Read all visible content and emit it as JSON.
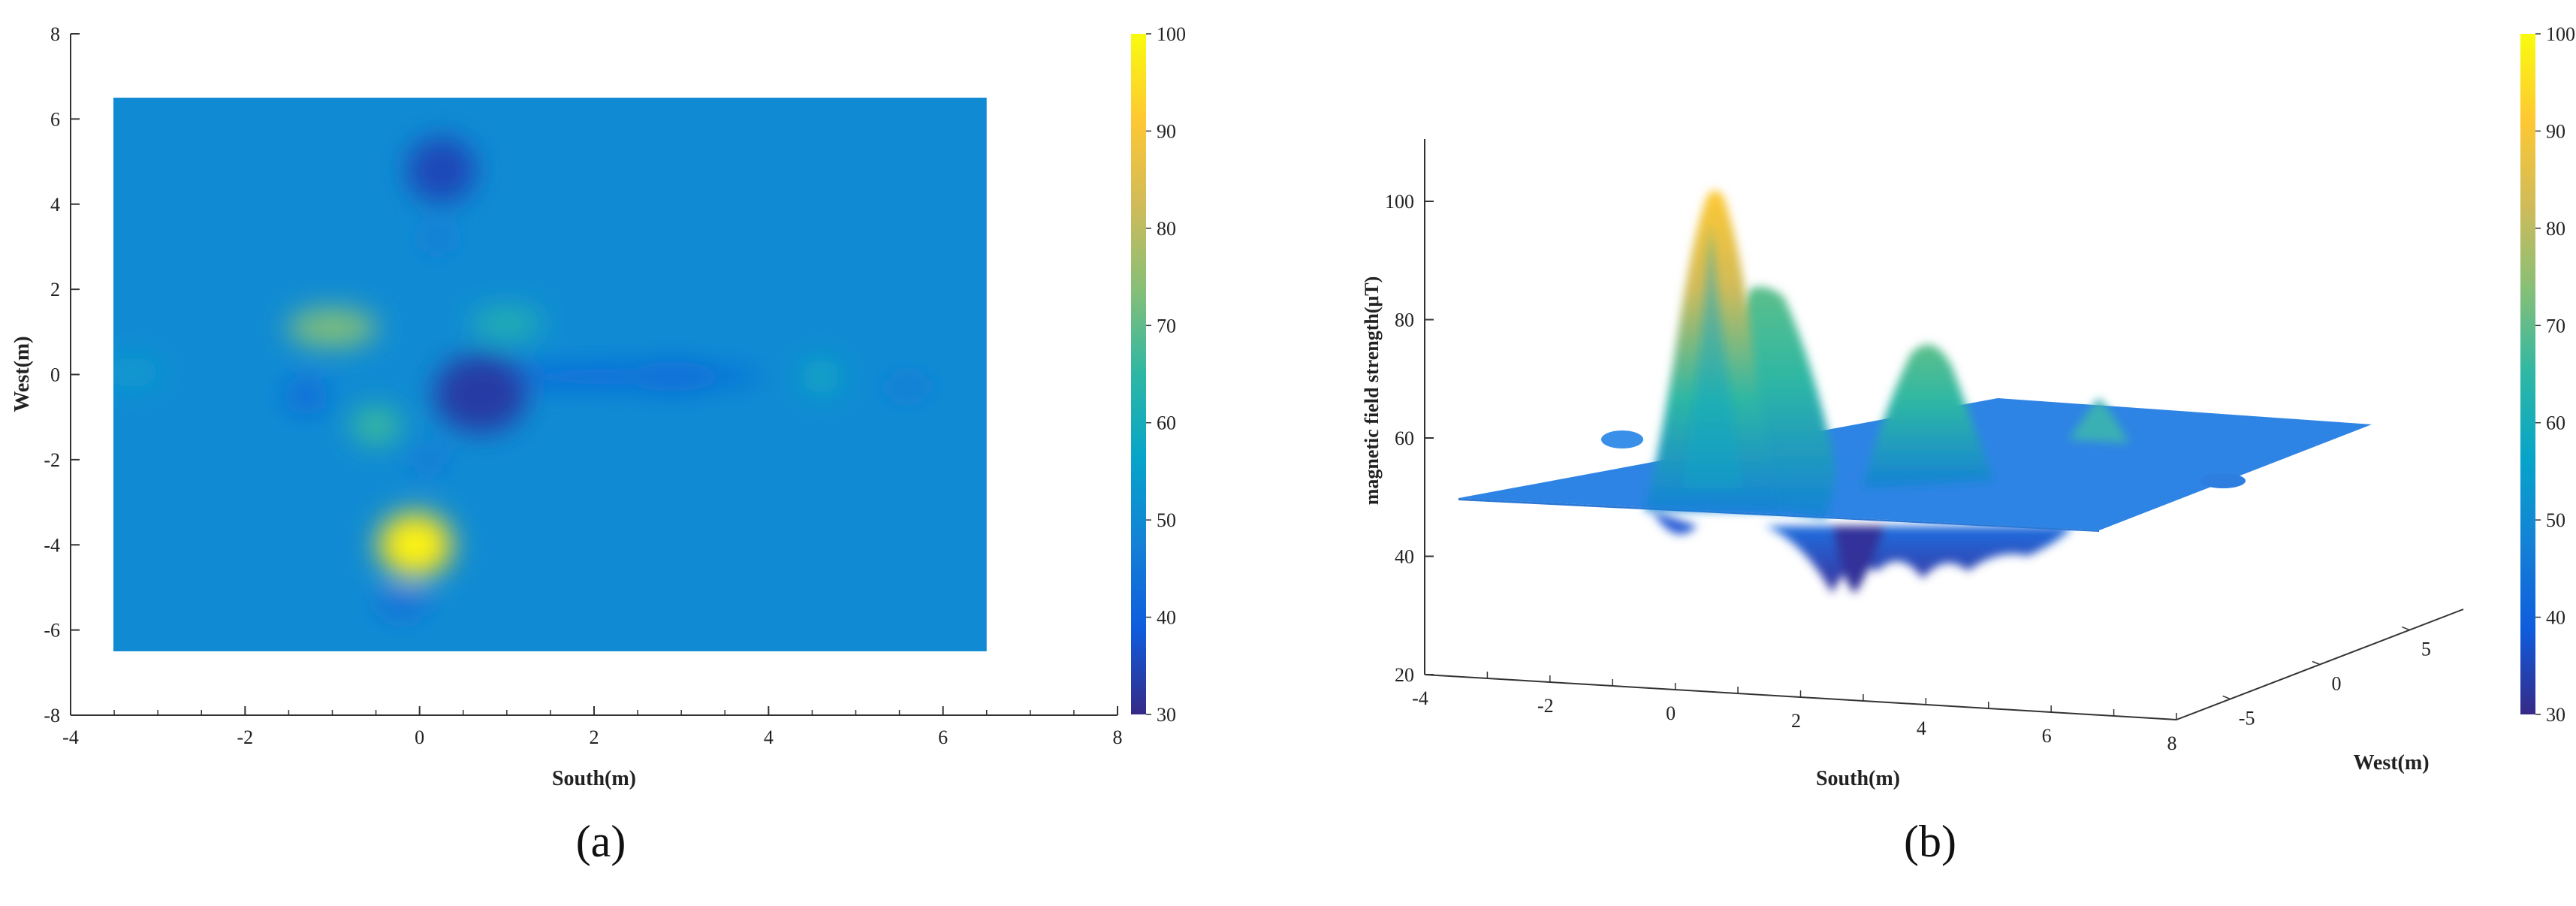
{
  "panels": {
    "a_label": "(a)",
    "b_label": "(b)"
  },
  "chart_data": [
    {
      "type": "heatmap",
      "panel": "a",
      "xlabel": "South(m)",
      "ylabel": "West(m)",
      "xlim": [
        -4,
        8
      ],
      "ylim": [
        -8,
        8
      ],
      "x_ticks": [
        "-4",
        "-2",
        "0",
        "2",
        "4",
        "6",
        "8"
      ],
      "y_ticks": [
        "-8",
        "-6",
        "-4",
        "-2",
        "0",
        "2",
        "4",
        "6",
        "8"
      ],
      "data_extent": {
        "x": [
          -3.6,
          6.5
        ],
        "y": [
          -6.5,
          6.5
        ]
      },
      "baseline_value": 50,
      "features": [
        {
          "x": 0.25,
          "y": 4.8,
          "value": 35
        },
        {
          "x": -1.0,
          "y": 1.1,
          "value": 73
        },
        {
          "x": 1.0,
          "y": 1.2,
          "value": 62
        },
        {
          "x": -1.3,
          "y": -0.5,
          "value": 43
        },
        {
          "x": 0.7,
          "y": -0.45,
          "value": 33
        },
        {
          "x": 2.9,
          "y": -0.05,
          "value": 42
        },
        {
          "x": 4.6,
          "y": -0.05,
          "value": 58
        },
        {
          "x": 5.6,
          "y": -0.3,
          "value": 46
        },
        {
          "x": -0.5,
          "y": -1.2,
          "value": 66
        },
        {
          "x": -0.05,
          "y": -4.0,
          "value": 95
        },
        {
          "x": -0.2,
          "y": -5.4,
          "value": 44
        }
      ],
      "colorbar": {
        "min": 30,
        "max": 100,
        "ticks": [
          "30",
          "40",
          "50",
          "60",
          "70",
          "80",
          "90",
          "100"
        ],
        "colormap": "parula"
      }
    },
    {
      "type": "surface",
      "panel": "b",
      "xlabel": "South(m)",
      "ylabel": "West(m)",
      "zlabel": "magnetic field strength(μT)",
      "x_ticks": [
        "-4",
        "-2",
        "0",
        "2",
        "4",
        "6",
        "8"
      ],
      "y_ticks": [
        "-5",
        "0",
        "5"
      ],
      "z_ticks": [
        "20",
        "40",
        "60",
        "80",
        "100"
      ],
      "zlim": [
        20,
        110
      ],
      "baseline_value": 50,
      "colorbar": {
        "min": 30,
        "max": 100,
        "ticks": [
          "30",
          "40",
          "50",
          "60",
          "70",
          "80",
          "90",
          "100"
        ],
        "colormap": "parula"
      }
    }
  ],
  "colors": {
    "parula": [
      "#352a87",
      "#0f5cdd",
      "#1481d6",
      "#06a4ca",
      "#2eb7a4",
      "#87bf77",
      "#d1bb59",
      "#fec832",
      "#f9fb0e"
    ]
  }
}
